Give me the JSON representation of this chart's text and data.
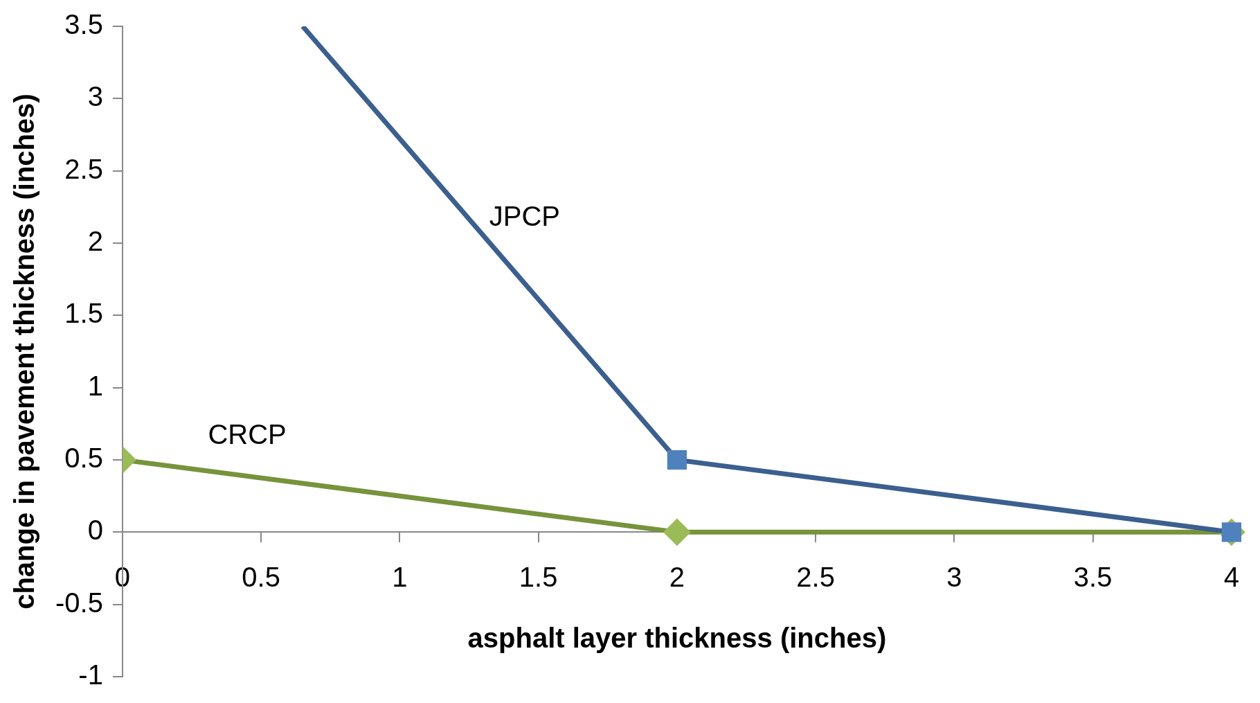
{
  "chart_data": {
    "type": "line",
    "xlabel": "asphalt layer thickness (inches)",
    "ylabel": "change in pavement thickness (inches)",
    "xlim": [
      0,
      4
    ],
    "xticks": [
      0,
      0.5,
      1,
      1.5,
      2,
      2.5,
      3,
      3.5,
      4
    ],
    "ylim": [
      -1,
      3.5
    ],
    "yticks": [
      -1,
      -0.5,
      0,
      0.5,
      1,
      1.5,
      2,
      2.5,
      3,
      3.5
    ],
    "grid": false,
    "legend": false,
    "series": [
      {
        "name": "JPCP",
        "marker": "square",
        "color": "#3b5f8e",
        "colors": [
          null,
          "#4f81bd",
          "#4f81bd"
        ],
        "x": [
          0.65,
          2,
          4
        ],
        "values": [
          3.5,
          0.5,
          0
        ]
      },
      {
        "name": "CRCP",
        "marker": "diamond",
        "color": "#77933c",
        "colors": [
          "#9bbb59",
          "#9bbb59",
          "#9bbb59"
        ],
        "x": [
          0,
          2,
          4
        ],
        "values": [
          0.5,
          0,
          0
        ]
      }
    ]
  }
}
